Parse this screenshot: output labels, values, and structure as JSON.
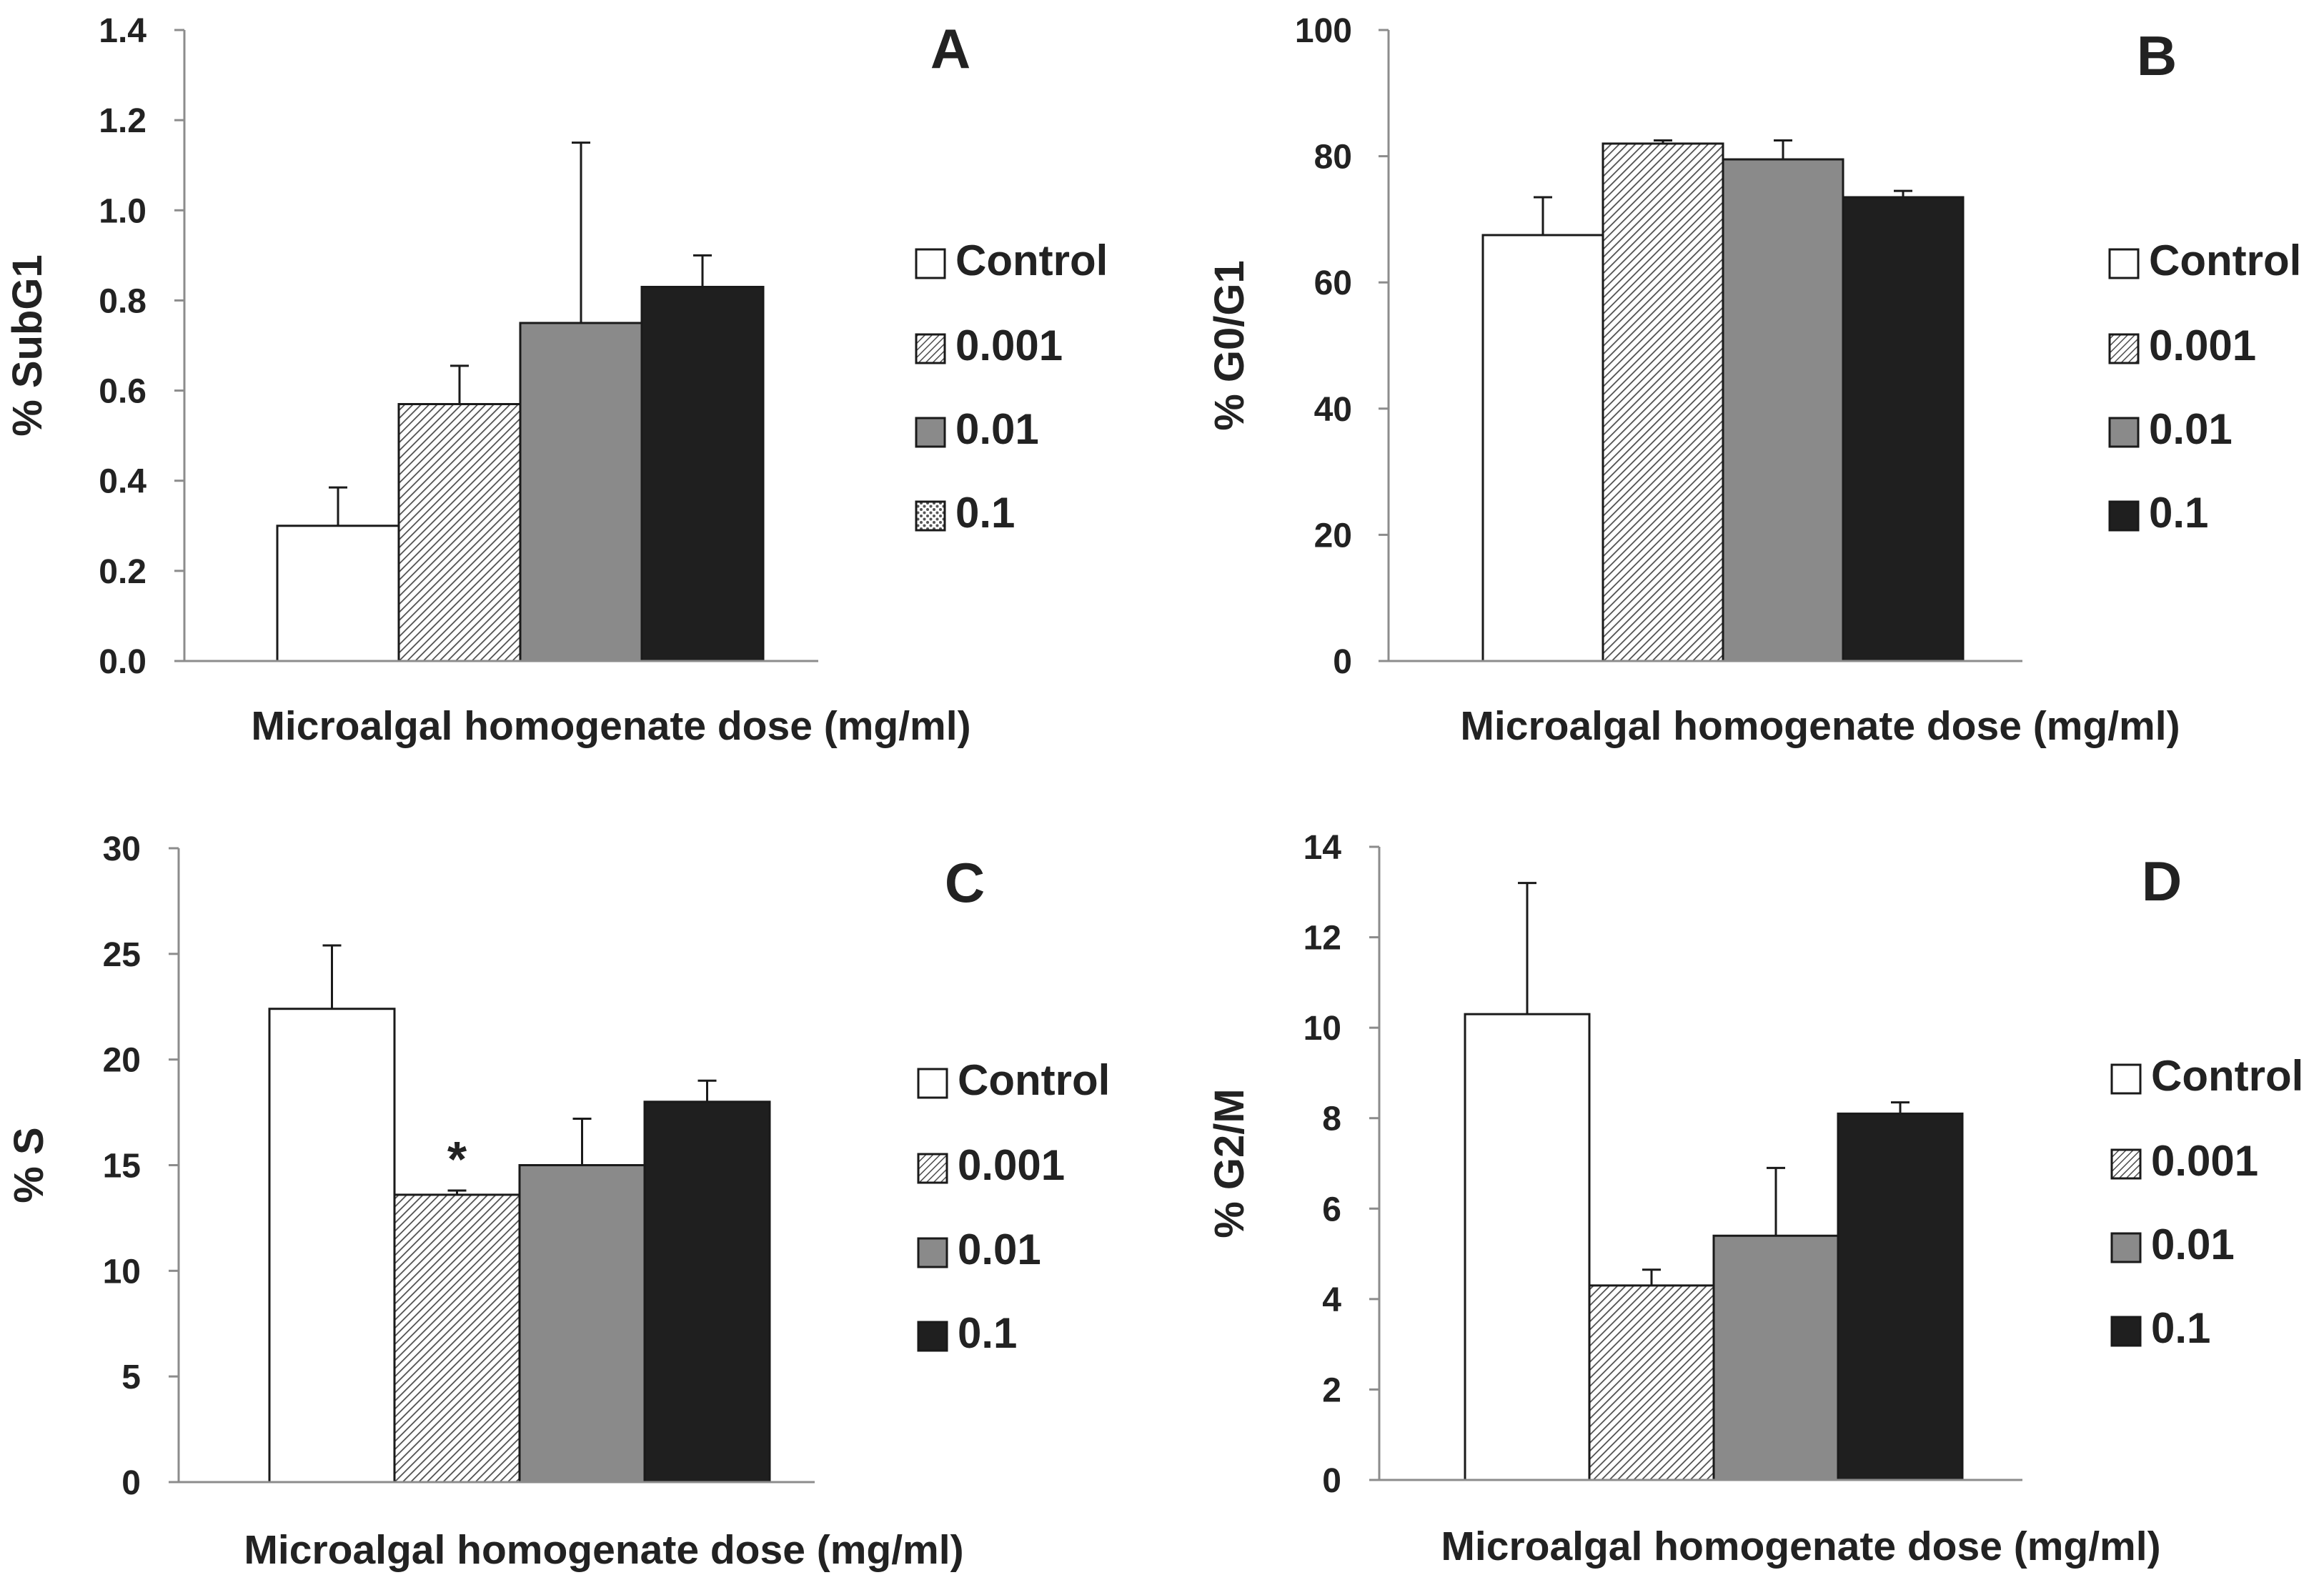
{
  "chart_data": [
    {
      "type": "bar",
      "panel_label": "A",
      "ylabel": "% SubG1",
      "xlabel": "Microalgal homogenate dose (mg/ml)",
      "ylim": [
        0,
        1.4
      ],
      "yticks": [
        "0.0",
        "0.2",
        "0.4",
        "0.6",
        "0.8",
        "1.0",
        "1.2",
        "1.4"
      ],
      "legend": [
        "Control",
        "0.001",
        "0.01",
        "0.1"
      ],
      "legend_placement": "right",
      "series": [
        {
          "name": "Control",
          "values": [
            0.3
          ],
          "error": [
            0.085
          ],
          "fill": "white"
        },
        {
          "name": "0.001",
          "values": [
            0.57
          ],
          "error": [
            0.085
          ],
          "fill": "hatch"
        },
        {
          "name": "0.01",
          "values": [
            0.75
          ],
          "error": [
            0.4
          ],
          "fill": "gray"
        },
        {
          "name": "0.1",
          "values": [
            0.83
          ],
          "error": [
            0.07
          ],
          "fill": "black"
        }
      ]
    },
    {
      "type": "bar",
      "panel_label": "B",
      "ylabel": "% G0/G1",
      "xlabel": "Microalgal homogenate dose (mg/ml)",
      "ylim": [
        0,
        100
      ],
      "yticks": [
        "0",
        "20",
        "40",
        "60",
        "80",
        "100"
      ],
      "legend": [
        "Control",
        "0.001",
        "0.01",
        "0.1"
      ],
      "legend_placement": "right",
      "series": [
        {
          "name": "Control",
          "values": [
            67.5
          ],
          "error": [
            6.0
          ],
          "fill": "white"
        },
        {
          "name": "0.001",
          "values": [
            82.0
          ],
          "error": [
            0.5
          ],
          "fill": "hatch"
        },
        {
          "name": "0.01",
          "values": [
            79.5
          ],
          "error": [
            3.0
          ],
          "fill": "gray"
        },
        {
          "name": "0.1",
          "values": [
            73.5
          ],
          "error": [
            1.0
          ],
          "fill": "black"
        }
      ]
    },
    {
      "type": "bar",
      "panel_label": "C",
      "ylabel": "% S",
      "xlabel": "Microalgal homogenate dose (mg/ml)",
      "ylim": [
        0,
        30
      ],
      "yticks": [
        "0",
        "5",
        "10",
        "15",
        "20",
        "25",
        "30"
      ],
      "legend": [
        "Control",
        "0.001",
        "0.01",
        "0.1"
      ],
      "legend_placement": "right",
      "annotations": [
        {
          "series": "0.001",
          "text": "*"
        }
      ],
      "series": [
        {
          "name": "Control",
          "values": [
            22.4
          ],
          "error": [
            3.0
          ],
          "fill": "white"
        },
        {
          "name": "0.001",
          "values": [
            13.6
          ],
          "error": [
            0.2
          ],
          "fill": "hatch"
        },
        {
          "name": "0.01",
          "values": [
            15.0
          ],
          "error": [
            2.2
          ],
          "fill": "gray"
        },
        {
          "name": "0.1",
          "values": [
            18.0
          ],
          "error": [
            1.0
          ],
          "fill": "black"
        }
      ]
    },
    {
      "type": "bar",
      "panel_label": "D",
      "ylabel": "% G2/M",
      "xlabel": "Microalgal homogenate dose (mg/ml)",
      "ylim": [
        0,
        14
      ],
      "yticks": [
        "0",
        "2",
        "4",
        "6",
        "8",
        "10",
        "12",
        "14"
      ],
      "legend": [
        "Control",
        "0.001",
        "0.01",
        "0.1"
      ],
      "legend_placement": "right",
      "series": [
        {
          "name": "Control",
          "values": [
            10.3
          ],
          "error": [
            2.9
          ],
          "fill": "white"
        },
        {
          "name": "0.001",
          "values": [
            4.3
          ],
          "error": [
            0.35
          ],
          "fill": "hatch"
        },
        {
          "name": "0.01",
          "values": [
            5.4
          ],
          "error": [
            1.5
          ],
          "fill": "gray"
        },
        {
          "name": "0.1",
          "values": [
            8.1
          ],
          "error": [
            0.25
          ],
          "fill": "black"
        }
      ]
    }
  ],
  "colors": {
    "axis": "#8c8c8c",
    "bar_outline": "#1a1a1a",
    "white_bar": "#ffffff",
    "gray_bar": "#8a8a8a",
    "black_bar": "#1f1f1f",
    "hatch": "#555555"
  }
}
